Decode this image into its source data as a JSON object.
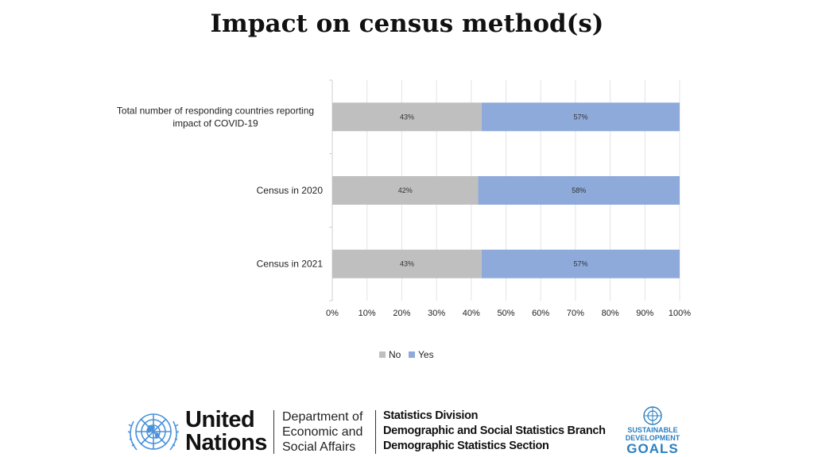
{
  "title": "Impact on census method(s)",
  "chart_data": {
    "type": "bar",
    "orientation": "horizontal",
    "stacked": "percent",
    "categories": [
      "Total number of responding countries reporting impact of COVID-19",
      "Census in 2020",
      "Census in 2021"
    ],
    "category_lines": [
      [
        "Total number of responding countries reporting",
        "impact of COVID-19"
      ],
      [
        "Census in 2020"
      ],
      [
        "Census in 2021"
      ]
    ],
    "series": [
      {
        "name": "No",
        "values": [
          43,
          42,
          43
        ],
        "labels": [
          "43%",
          "42%",
          "43%"
        ],
        "color": "#bfbfbf"
      },
      {
        "name": "Yes",
        "values": [
          57,
          58,
          57
        ],
        "labels": [
          "57%",
          "58%",
          "57%"
        ],
        "color": "#8eaadb"
      }
    ],
    "xlim": [
      0,
      100
    ],
    "xticks": [
      "0%",
      "10%",
      "20%",
      "30%",
      "40%",
      "50%",
      "60%",
      "70%",
      "80%",
      "90%",
      "100%"
    ],
    "xlabel": "",
    "ylabel": "",
    "grid": true,
    "legend": "bottom"
  },
  "footer": {
    "org_line1": "United",
    "org_line2": "Nations",
    "dept_line1": "Department of",
    "dept_line2": "Economic and",
    "dept_line3": "Social Affairs",
    "division_line1": "Statistics Division",
    "division_line2": "Demographic and Social Statistics Branch",
    "division_line3": "Demographic Statistics Section",
    "sdg_line1": "SUSTAINABLE",
    "sdg_line2": "DEVELOPMENT",
    "sdg_line3": "GOALS",
    "un_blue": "#4b92db",
    "sdg_blue": "#2a7fc1"
  }
}
